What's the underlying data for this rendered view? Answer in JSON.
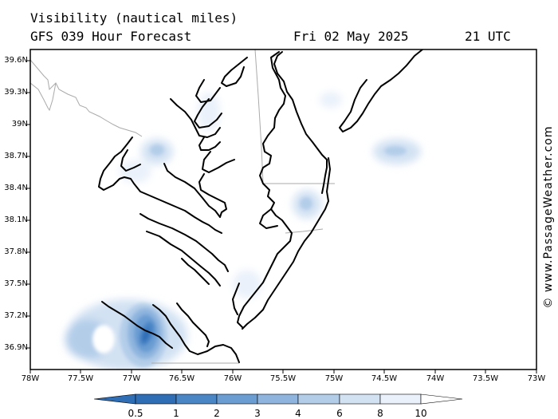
{
  "header": {
    "title": "Visibility (nautical miles)",
    "model": "GFS 039 Hour Forecast",
    "date": "Fri 02 May 2025",
    "time": "21 UTC"
  },
  "watermark": "© www.PassageWeather.com",
  "axes": {
    "lat_labels": [
      "39.6N",
      "39.3N",
      "39N",
      "38.7N",
      "38.4N",
      "38.1N",
      "37.8N",
      "37.5N",
      "37.2N",
      "36.9N"
    ],
    "lon_labels": [
      "78W",
      "77.5W",
      "77W",
      "76.5W",
      "76W",
      "75.5W",
      "75W",
      "74.5W",
      "74W",
      "73.5W",
      "73W"
    ]
  },
  "colorbar": {
    "labels": [
      "0.5",
      "1",
      "2",
      "3",
      "4",
      "6",
      "8",
      "10"
    ],
    "colors": [
      "#2f6db5",
      "#4a85c6",
      "#6b9dd3",
      "#8fb5de",
      "#b3cde9",
      "#d3e2f3",
      "#eaf1fa",
      "#ffffff"
    ]
  },
  "colors": {
    "frame": "#000000",
    "border": "#aaaaaa",
    "coast": "#000000"
  }
}
